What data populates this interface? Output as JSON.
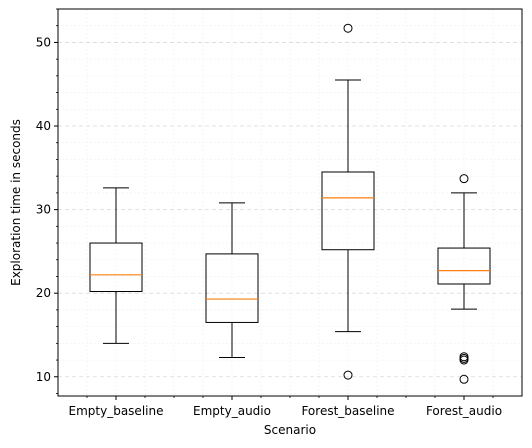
{
  "chart_data": {
    "type": "box",
    "xlabel": "Scenario",
    "ylabel": "Exploration time in seconds",
    "ylim": [
      7.7,
      54.0
    ],
    "yticks": [
      10,
      20,
      30,
      40,
      50
    ],
    "grid": {
      "major": true,
      "minor": true
    },
    "colors": {
      "box": "#000000",
      "median": "#ff7f0e",
      "grid": "#d9d9d9",
      "minor_grid": "#efefef"
    },
    "series": [
      {
        "category": "Empty_baseline",
        "whisker_low": 14.0,
        "q1": 20.2,
        "median": 22.2,
        "q3": 26.0,
        "whisker_high": 32.6,
        "outliers": []
      },
      {
        "category": "Empty_audio",
        "whisker_low": 12.3,
        "q1": 16.5,
        "median": 19.3,
        "q3": 24.7,
        "whisker_high": 30.8,
        "outliers": []
      },
      {
        "category": "Forest_baseline",
        "whisker_low": 15.4,
        "q1": 25.2,
        "median": 31.4,
        "q3": 34.5,
        "whisker_high": 45.5,
        "outliers": [
          10.2,
          51.7
        ]
      },
      {
        "category": "Forest_audio",
        "whisker_low": 18.1,
        "q1": 21.1,
        "median": 22.7,
        "q3": 25.4,
        "whisker_high": 32.0,
        "outliers": [
          33.7,
          12.4,
          12.2,
          12.0,
          9.7
        ]
      }
    ]
  }
}
